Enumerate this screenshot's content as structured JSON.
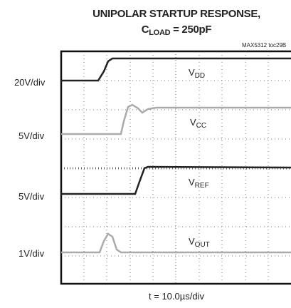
{
  "title": {
    "line1": "UNIPOLAR STARTUP RESPONSE,",
    "line2": {
      "main": "C",
      "sub": "LOAD",
      "rest": " = 250pF"
    }
  },
  "figure_id": "MAX5312 toc29B",
  "scales": [
    "20V/div",
    "5V/div",
    "5V/div",
    "1V/div"
  ],
  "traces": [
    {
      "main": "V",
      "sub": "DD"
    },
    {
      "main": "V",
      "sub": "CC"
    },
    {
      "main": "V",
      "sub": "REF"
    },
    {
      "main": "V",
      "sub": "OUT"
    }
  ],
  "time_scale": "t = 10.0µs/div"
}
